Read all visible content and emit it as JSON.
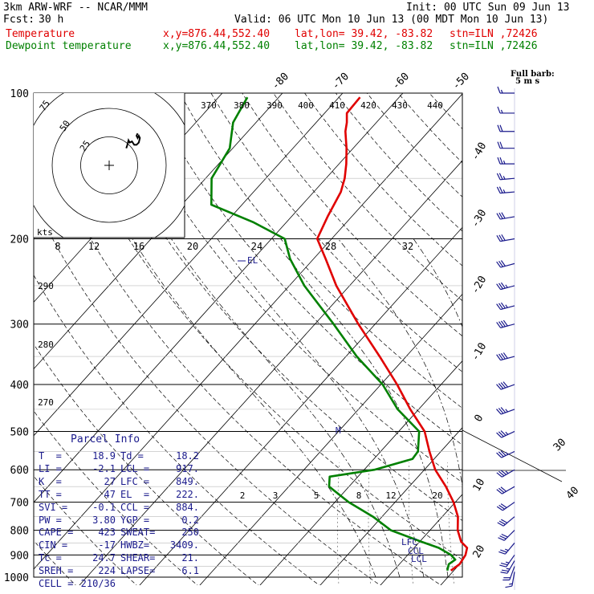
{
  "header": {
    "model": "3km ARW-WRF -- NCAR/MMM",
    "init": "Init: 00 UTC Sun 09 Jun 13",
    "fcst_label": "Fcst:",
    "fcst_value": "30 h",
    "valid": "Valid: 06 UTC Mon 10 Jun 13 (00 MDT Mon 10 Jun 13)",
    "temperature_label": "Temperature",
    "dewpoint_label": "Dewpoint temperature",
    "xy": "x,y=876.44,552.40",
    "latlon": "lat,lon= 39.42, -83.82",
    "station": "stn=ILN ,72426",
    "colors": {
      "temperature": "#e00000",
      "dewpoint": "#008000",
      "parcel": "#1a1a8c"
    }
  },
  "barb_legend": {
    "line1": "Full barb:",
    "line2": "5 m s"
  },
  "parcel_info": {
    "title": "Parcel Info",
    "rows": [
      [
        "T  =",
        "18.9",
        "Td =",
        "18.2"
      ],
      [
        "LI =",
        "-2.1",
        "LCL =",
        "917."
      ],
      [
        "K  =",
        "27",
        "LFC =",
        "849."
      ],
      [
        "TT =",
        "47",
        "EL  =",
        "222."
      ],
      [
        "SVI =",
        "-0.1",
        "CCL =",
        "884."
      ],
      [
        "PW =",
        "3.80",
        "YGP =",
        "0.2"
      ],
      [
        "CAPE =",
        "423",
        "SWEAT=",
        "250"
      ],
      [
        "CIN =",
        "-17",
        "HWBZ=",
        "3409."
      ],
      [
        "Tc =",
        "24.7",
        "SHEAR=",
        "21."
      ],
      [
        "SREH =",
        "224",
        "LAPSE=",
        "6.1"
      ],
      [
        "CELL =",
        "210/36",
        "",
        ""
      ]
    ]
  },
  "hodograph": {
    "axis_label": "kts",
    "rings": [
      "25",
      "50",
      "75"
    ],
    "trace_uv": [
      [
        15,
        15
      ],
      [
        16,
        18
      ],
      [
        17,
        22
      ],
      [
        18,
        20
      ],
      [
        20,
        21
      ],
      [
        22,
        18
      ],
      [
        24,
        18
      ],
      [
        26,
        20
      ],
      [
        27,
        24
      ],
      [
        26,
        26
      ],
      [
        25,
        24
      ],
      [
        24,
        26
      ],
      [
        25,
        28
      ]
    ]
  },
  "inset_axis_ticks": [
    "8",
    "12",
    "16",
    "20",
    "24",
    "28",
    "32"
  ],
  "theta_labels": [
    "370",
    "380",
    "390",
    "400",
    "410",
    "420",
    "430",
    "440"
  ],
  "theta_left_labels": [
    "290",
    "280",
    "270"
  ],
  "mixing_ratio_labels": [
    "2",
    "3",
    "5",
    "8",
    "12",
    "20"
  ],
  "level_markers": [
    "LFC",
    "CCL",
    "LCL"
  ],
  "el_marker": "EL",
  "m_marker": "M",
  "chart_data": {
    "type": "line",
    "title": "",
    "xlabel": "",
    "ylabel": "",
    "y_scale": "log",
    "ylim": [
      1000,
      100
    ],
    "y_ticks": [
      100,
      200,
      300,
      400,
      500,
      600,
      700,
      800,
      900,
      1000
    ],
    "x_ticks": [
      -80,
      -70,
      -60,
      -50,
      -40,
      -30,
      -20,
      -10,
      0,
      10,
      20,
      30,
      40
    ],
    "grid": true,
    "series": [
      {
        "name": "Temperature",
        "points": [
          [
            969,
            19.5
          ],
          [
            940,
            20.0
          ],
          [
            900,
            19.6
          ],
          [
            870,
            18.8
          ],
          [
            845,
            16.9
          ],
          [
            800,
            14.6
          ],
          [
            750,
            12.6
          ],
          [
            700,
            9.7
          ],
          [
            650,
            6.1
          ],
          [
            600,
            1.8
          ],
          [
            550,
            -1.9
          ],
          [
            500,
            -5.7
          ],
          [
            450,
            -11.4
          ],
          [
            400,
            -17.3
          ],
          [
            350,
            -24.4
          ],
          [
            300,
            -32.8
          ],
          [
            250,
            -42.2
          ],
          [
            220,
            -48.0
          ],
          [
            200,
            -52.4
          ],
          [
            180,
            -54.0
          ],
          [
            160,
            -55.5
          ],
          [
            150,
            -56.9
          ],
          [
            140,
            -58.8
          ],
          [
            130,
            -61.1
          ],
          [
            120,
            -63.8
          ],
          [
            115,
            -64.9
          ],
          [
            110,
            -66.3
          ],
          [
            102,
            -66.5
          ]
        ]
      },
      {
        "name": "Dewpoint temperature",
        "points": [
          [
            969,
            18.9
          ],
          [
            940,
            18.2
          ],
          [
            920,
            18.6
          ],
          [
            900,
            17.2
          ],
          [
            870,
            14.1
          ],
          [
            845,
            10.3
          ],
          [
            800,
            3.5
          ],
          [
            750,
            -1.5
          ],
          [
            700,
            -7.7
          ],
          [
            650,
            -13.3
          ],
          [
            620,
            -14.7
          ],
          [
            600,
            -8.3
          ],
          [
            570,
            -3.6
          ],
          [
            550,
            -3.8
          ],
          [
            500,
            -6.6
          ],
          [
            450,
            -13.5
          ],
          [
            400,
            -19.7
          ],
          [
            350,
            -28.2
          ],
          [
            300,
            -36.9
          ],
          [
            250,
            -47.5
          ],
          [
            220,
            -53.9
          ],
          [
            200,
            -57.8
          ],
          [
            185,
            -65.4
          ],
          [
            170,
            -75.1
          ],
          [
            150,
            -79.0
          ],
          [
            130,
            -80.5
          ],
          [
            115,
            -83.8
          ],
          [
            102,
            -85.2
          ]
        ]
      }
    ],
    "wind_barbs": [
      {
        "p": 975,
        "dir": 190,
        "spd": 15
      },
      {
        "p": 950,
        "dir": 200,
        "spd": 20
      },
      {
        "p": 925,
        "dir": 210,
        "spd": 25
      },
      {
        "p": 900,
        "dir": 215,
        "spd": 25
      },
      {
        "p": 850,
        "dir": 220,
        "spd": 25
      },
      {
        "p": 800,
        "dir": 225,
        "spd": 30
      },
      {
        "p": 750,
        "dir": 230,
        "spd": 30
      },
      {
        "p": 700,
        "dir": 235,
        "spd": 30
      },
      {
        "p": 650,
        "dir": 240,
        "spd": 30
      },
      {
        "p": 600,
        "dir": 240,
        "spd": 35
      },
      {
        "p": 550,
        "dir": 245,
        "spd": 35
      },
      {
        "p": 500,
        "dir": 245,
        "spd": 35
      },
      {
        "p": 450,
        "dir": 250,
        "spd": 35
      },
      {
        "p": 400,
        "dir": 250,
        "spd": 40
      },
      {
        "p": 350,
        "dir": 255,
        "spd": 40
      },
      {
        "p": 300,
        "dir": 255,
        "spd": 40
      },
      {
        "p": 275,
        "dir": 255,
        "spd": 35
      },
      {
        "p": 250,
        "dir": 255,
        "spd": 35
      },
      {
        "p": 225,
        "dir": 255,
        "spd": 30
      },
      {
        "p": 200,
        "dir": 260,
        "spd": 30
      },
      {
        "p": 180,
        "dir": 260,
        "spd": 30
      },
      {
        "p": 160,
        "dir": 265,
        "spd": 25
      },
      {
        "p": 150,
        "dir": 265,
        "spd": 25
      },
      {
        "p": 140,
        "dir": 270,
        "spd": 25
      },
      {
        "p": 130,
        "dir": 270,
        "spd": 20
      },
      {
        "p": 120,
        "dir": 270,
        "spd": 20
      },
      {
        "p": 110,
        "dir": 270,
        "spd": 15
      },
      {
        "p": 100,
        "dir": 270,
        "spd": 15
      }
    ]
  }
}
